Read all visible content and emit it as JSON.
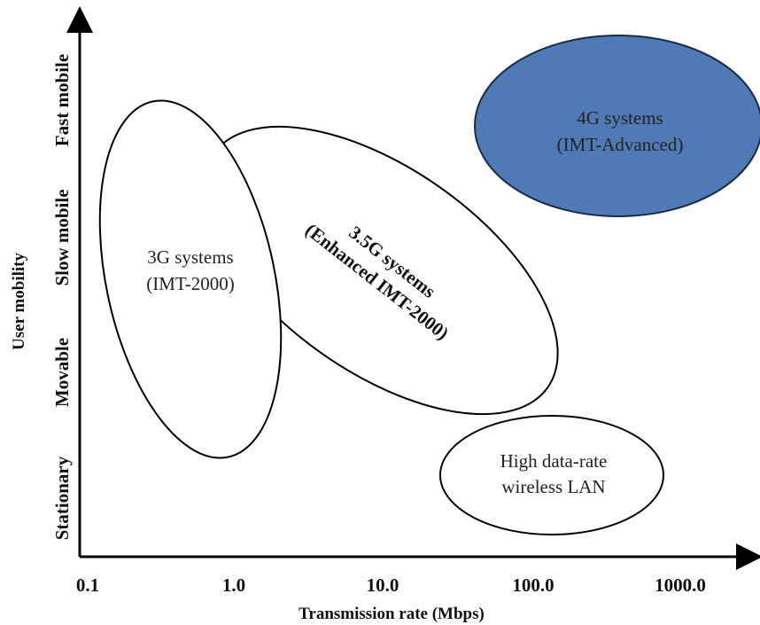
{
  "axes": {
    "x_title": "Transmission rate (Mbps)",
    "y_title": "User mobility",
    "x_ticks": [
      "0.1",
      "1.0",
      "10.0",
      "100.0",
      "1000.0"
    ],
    "y_levels": [
      "Stationary",
      "Movable",
      "Slow mobile",
      "Fast mobile"
    ]
  },
  "regions": {
    "g3": {
      "line1": "3G systems",
      "line2": "(IMT-2000)"
    },
    "g35": {
      "line1": "3.5G systems",
      "line2": "(Enhanced IMT-2000)"
    },
    "wlan": {
      "line1": "High data-rate",
      "line2": "wireless LAN"
    },
    "g4": {
      "line1": "4G systems",
      "line2": "(IMT-Advanced)"
    }
  },
  "colors": {
    "g4_fill": "#4f7ab5",
    "outline": "#000000"
  }
}
